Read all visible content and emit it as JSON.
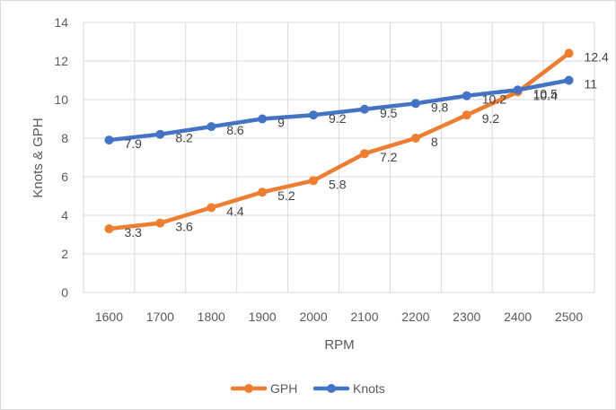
{
  "chart_data": {
    "type": "line",
    "title": "",
    "xlabel": "RPM",
    "ylabel": "Knots & GPH",
    "categories": [
      "1600",
      "1700",
      "1800",
      "1900",
      "2000",
      "2100",
      "2200",
      "2300",
      "2400",
      "2500"
    ],
    "ylim": [
      0,
      14
    ],
    "yticks": [
      0,
      2,
      4,
      6,
      8,
      10,
      12,
      14
    ],
    "grid": true,
    "legend_position": "bottom",
    "series": [
      {
        "name": "GPH",
        "color": "#ed7d31",
        "values": [
          3.3,
          3.6,
          4.4,
          5.2,
          5.8,
          7.2,
          8,
          9.2,
          10.4,
          12.4
        ]
      },
      {
        "name": "Knots",
        "color": "#4472c4",
        "values": [
          7.9,
          8.2,
          8.6,
          9,
          9.2,
          9.5,
          9.8,
          10.2,
          10.5,
          11
        ]
      }
    ]
  }
}
